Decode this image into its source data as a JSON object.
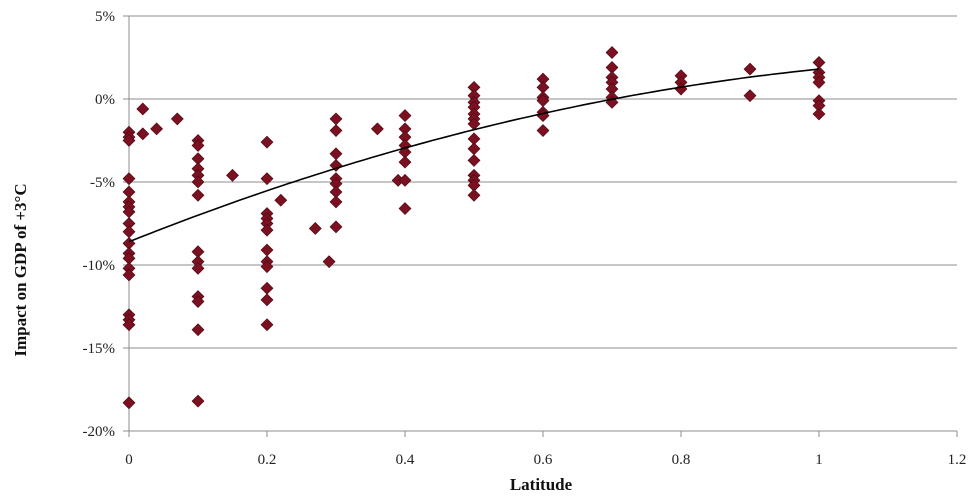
{
  "chart_data": {
    "type": "scatter",
    "title": "",
    "xlabel": "Latitude",
    "ylabel": "Impact on GDP of  +3°C",
    "xlim": [
      0,
      1.2
    ],
    "ylim": [
      -20,
      5
    ],
    "x_ticks": [
      "0",
      "0.2",
      "0.4",
      "0.6",
      "0.8",
      "1",
      "1.2"
    ],
    "y_ticks": [
      "-20%",
      "-15%",
      "-10%",
      "-5%",
      "0%",
      "5%"
    ],
    "x_tick_values": [
      0,
      0.2,
      0.4,
      0.6,
      0.8,
      1.0,
      1.2
    ],
    "y_tick_values": [
      -20,
      -15,
      -10,
      -5,
      0,
      5
    ],
    "grid": "horizontal",
    "legend": "none",
    "marker_color": "#7a1020",
    "trend_color": "#000000",
    "series": [
      {
        "values": [
          [
            0,
            -2.0
          ],
          [
            0,
            -2.3
          ],
          [
            0,
            -2.5
          ],
          [
            0,
            -4.8
          ],
          [
            0,
            -5.6
          ],
          [
            0,
            -6.2
          ],
          [
            0,
            -6.5
          ],
          [
            0,
            -6.8
          ],
          [
            0,
            -7.5
          ],
          [
            0,
            -8.0
          ],
          [
            0,
            -8.7
          ],
          [
            0,
            -9.3
          ],
          [
            0,
            -9.6
          ],
          [
            0,
            -10.2
          ],
          [
            0,
            -10.6
          ],
          [
            0,
            -13.0
          ],
          [
            0,
            -13.3
          ],
          [
            0,
            -13.6
          ],
          [
            0,
            -18.3
          ],
          [
            0.02,
            -0.6
          ],
          [
            0.02,
            -2.1
          ],
          [
            0.04,
            -1.8
          ],
          [
            0.07,
            -1.2
          ],
          [
            0.1,
            -2.5
          ],
          [
            0.1,
            -2.8
          ],
          [
            0.1,
            -3.6
          ],
          [
            0.1,
            -4.2
          ],
          [
            0.1,
            -4.6
          ],
          [
            0.1,
            -5.0
          ],
          [
            0.1,
            -5.8
          ],
          [
            0.1,
            -9.2
          ],
          [
            0.1,
            -9.8
          ],
          [
            0.1,
            -10.2
          ],
          [
            0.1,
            -11.9
          ],
          [
            0.1,
            -12.2
          ],
          [
            0.1,
            -13.9
          ],
          [
            0.1,
            -18.2
          ],
          [
            0.15,
            -4.6
          ],
          [
            0.2,
            -2.6
          ],
          [
            0.2,
            -4.8
          ],
          [
            0.2,
            -6.9
          ],
          [
            0.2,
            -7.2
          ],
          [
            0.2,
            -7.5
          ],
          [
            0.2,
            -7.9
          ],
          [
            0.2,
            -9.1
          ],
          [
            0.2,
            -9.8
          ],
          [
            0.2,
            -10.1
          ],
          [
            0.2,
            -11.4
          ],
          [
            0.2,
            -12.1
          ],
          [
            0.2,
            -13.6
          ],
          [
            0.22,
            -6.1
          ],
          [
            0.27,
            -7.8
          ],
          [
            0.29,
            -9.8
          ],
          [
            0.3,
            -1.2
          ],
          [
            0.3,
            -1.9
          ],
          [
            0.3,
            -3.3
          ],
          [
            0.3,
            -4.0
          ],
          [
            0.3,
            -4.8
          ],
          [
            0.3,
            -5.1
          ],
          [
            0.3,
            -5.6
          ],
          [
            0.3,
            -6.2
          ],
          [
            0.3,
            -7.7
          ],
          [
            0.36,
            -1.8
          ],
          [
            0.39,
            -4.9
          ],
          [
            0.4,
            -1.0
          ],
          [
            0.4,
            -1.8
          ],
          [
            0.4,
            -2.3
          ],
          [
            0.4,
            -2.8
          ],
          [
            0.4,
            -3.2
          ],
          [
            0.4,
            -3.8
          ],
          [
            0.4,
            -4.9
          ],
          [
            0.4,
            -6.6
          ],
          [
            0.5,
            0.7
          ],
          [
            0.5,
            0.2
          ],
          [
            0.5,
            -0.2
          ],
          [
            0.5,
            -0.5
          ],
          [
            0.5,
            -0.9
          ],
          [
            0.5,
            -1.2
          ],
          [
            0.5,
            -1.5
          ],
          [
            0.5,
            -2.4
          ],
          [
            0.5,
            -3.0
          ],
          [
            0.5,
            -3.7
          ],
          [
            0.5,
            -4.6
          ],
          [
            0.5,
            -4.9
          ],
          [
            0.5,
            -5.2
          ],
          [
            0.5,
            -5.8
          ],
          [
            0.6,
            1.2
          ],
          [
            0.6,
            0.7
          ],
          [
            0.6,
            0.1
          ],
          [
            0.6,
            -0.1
          ],
          [
            0.6,
            -0.8
          ],
          [
            0.6,
            -1.0
          ],
          [
            0.6,
            -1.9
          ],
          [
            0.7,
            2.8
          ],
          [
            0.7,
            1.9
          ],
          [
            0.7,
            1.3
          ],
          [
            0.7,
            1.0
          ],
          [
            0.7,
            0.6
          ],
          [
            0.7,
            0.1
          ],
          [
            0.7,
            -0.2
          ],
          [
            0.8,
            1.4
          ],
          [
            0.8,
            1.0
          ],
          [
            0.8,
            0.6
          ],
          [
            0.9,
            1.8
          ],
          [
            0.9,
            0.2
          ],
          [
            1.0,
            2.2
          ],
          [
            1.0,
            1.6
          ],
          [
            1.0,
            1.3
          ],
          [
            1.0,
            1.0
          ],
          [
            1.0,
            -0.1
          ],
          [
            1.0,
            -0.4
          ],
          [
            1.0,
            -0.9
          ]
        ]
      }
    ],
    "trendline": {
      "type": "polynomial",
      "coefficients": [
        -8.6,
        16.6,
        -6.2
      ]
    }
  }
}
